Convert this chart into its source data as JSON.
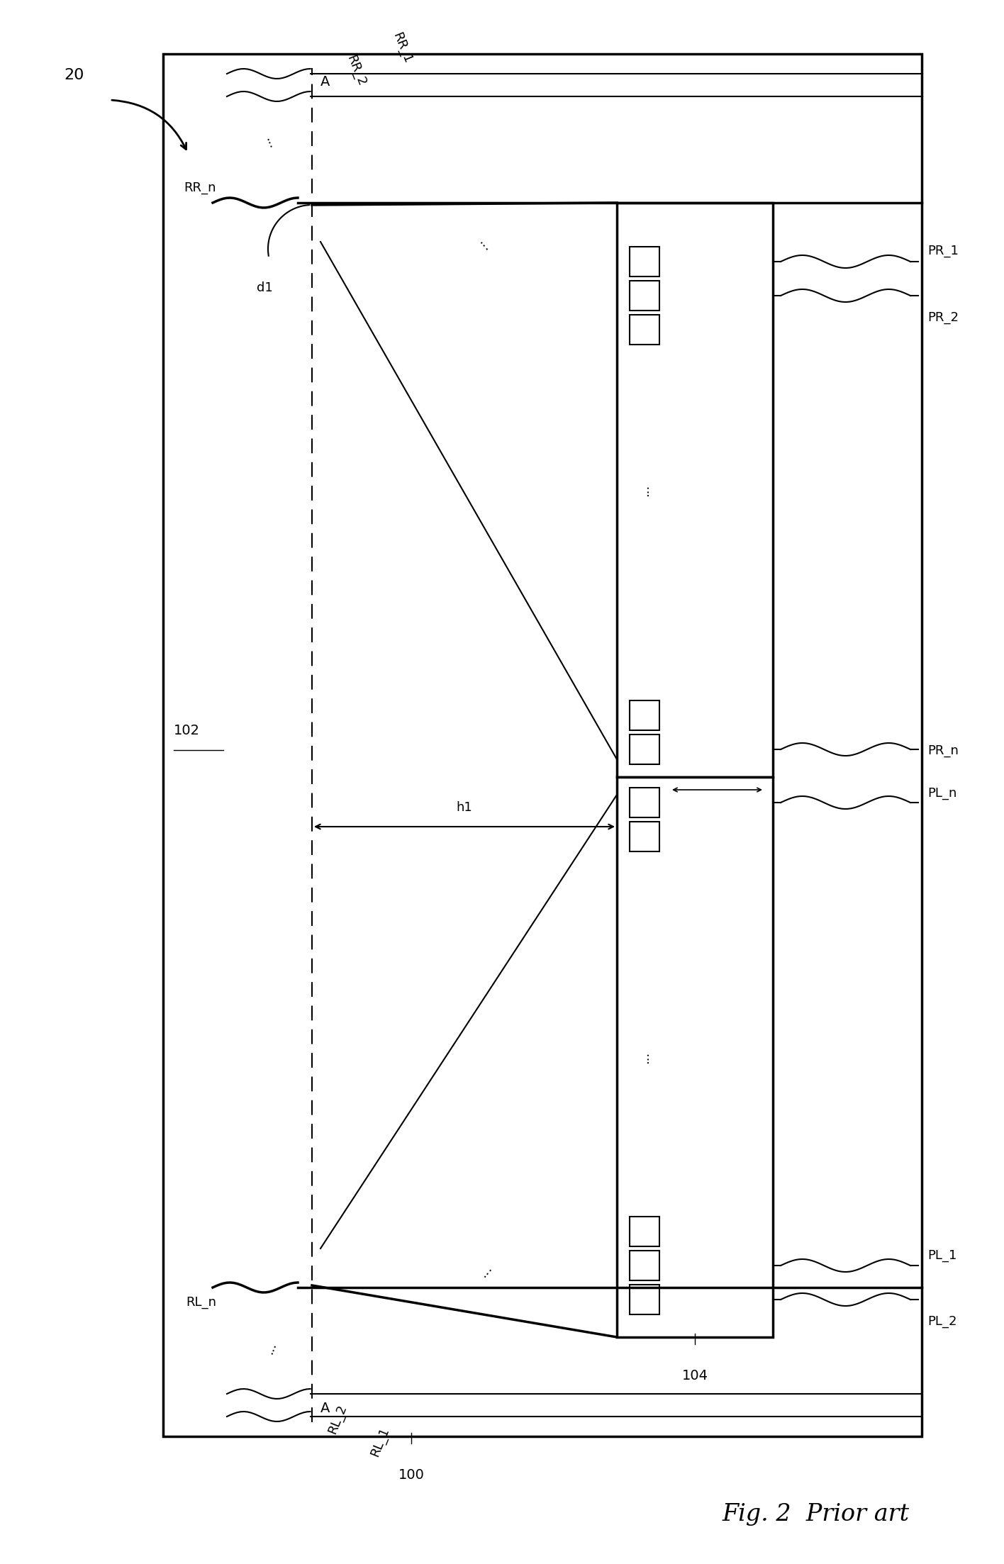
{
  "bg_color": "#ffffff",
  "line_color": "#000000",
  "fig_width": 14.16,
  "fig_height": 22.06,
  "title": "Fig. 2  Prior art",
  "label_20": "20",
  "label_102": "102",
  "label_100": "100",
  "label_104": "104",
  "label_RR_1": "RR_1",
  "label_RR_2": "RR_2",
  "label_RR_n": "RR_n",
  "label_RL_1": "RL_1",
  "label_RL_2": "RL_2",
  "label_RL_n": "RL_n",
  "label_PR_1": "PR_1",
  "label_PR_2": "PR_2",
  "label_PR_n": "PR_n",
  "label_PL_1": "PL_1",
  "label_PL_2": "PL_2",
  "label_PL_n": "PL_n",
  "label_d1": "d1",
  "label_h1": "h1",
  "label_A": "A"
}
